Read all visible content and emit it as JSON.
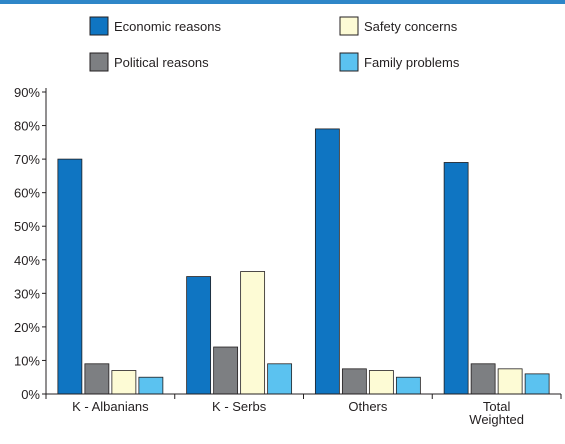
{
  "chart_data": {
    "type": "bar",
    "categories": [
      "K - Albanians",
      "K - Serbs",
      "Others",
      "Total Weighted"
    ],
    "series": [
      {
        "name": "Economic reasons",
        "color": "#0f75c2",
        "values": [
          70,
          35,
          79,
          69
        ]
      },
      {
        "name": "Political reasons",
        "color": "#7d7f82",
        "values": [
          9,
          14,
          7.5,
          9
        ]
      },
      {
        "name": "Safety concerns",
        "color": "#fdfbd5",
        "values": [
          7,
          36.5,
          7,
          7.5
        ]
      },
      {
        "name": "Family problems",
        "color": "#5bc2f0",
        "values": [
          5,
          9,
          5,
          6
        ]
      }
    ],
    "ylim": [
      0,
      90
    ],
    "yticks": [
      "0%",
      "10%",
      "20%",
      "30%",
      "40%",
      "50%",
      "60%",
      "70%",
      "80%",
      "90%"
    ],
    "grid": false,
    "legend_position": "top",
    "title": "",
    "xlabel": "",
    "ylabel": ""
  }
}
